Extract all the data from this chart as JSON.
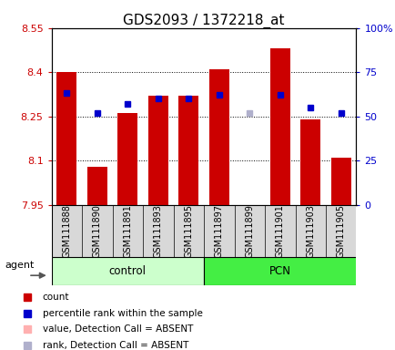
{
  "title": "GDS2093 / 1372218_at",
  "samples": [
    "GSM111888",
    "GSM111890",
    "GSM111891",
    "GSM111893",
    "GSM111895",
    "GSM111897",
    "GSM111899",
    "GSM111901",
    "GSM111903",
    "GSM111905"
  ],
  "ylim_left": [
    7.95,
    8.55
  ],
  "ylim_right": [
    0,
    100
  ],
  "yticks_left": [
    7.95,
    8.1,
    8.25,
    8.4,
    8.55
  ],
  "yticks_right": [
    0,
    25,
    50,
    75,
    100
  ],
  "ytick_labels_right": [
    "0",
    "25",
    "50",
    "75",
    "100%"
  ],
  "bar_values": [
    8.4,
    8.08,
    8.26,
    8.32,
    8.32,
    8.41,
    7.95,
    8.48,
    8.24,
    8.11
  ],
  "bar_absent": [
    false,
    false,
    false,
    false,
    false,
    false,
    true,
    false,
    false,
    false
  ],
  "bar_color_present": "#cc0000",
  "bar_color_absent": "#ffb0b0",
  "rank_values": [
    63,
    52,
    57,
    60,
    60,
    62,
    52,
    62,
    55,
    52
  ],
  "rank_absent": [
    false,
    false,
    false,
    false,
    false,
    false,
    true,
    false,
    false,
    false
  ],
  "rank_color_present": "#0000cc",
  "rank_color_absent": "#b0b0cc",
  "bar_bottom": 7.95,
  "bar_width": 0.65,
  "group_control_label": "control",
  "group_pcn_label": "PCN",
  "group_control_color": "#ccffcc",
  "group_pcn_color": "#44ee44",
  "agent_label": "agent",
  "legend_items": [
    {
      "label": "count",
      "color": "#cc0000"
    },
    {
      "label": "percentile rank within the sample",
      "color": "#0000cc"
    },
    {
      "label": "value, Detection Call = ABSENT",
      "color": "#ffb0b0"
    },
    {
      "label": "rank, Detection Call = ABSENT",
      "color": "#b0b0cc"
    }
  ],
  "background_color": "#ffffff",
  "tick_color_left": "#cc0000",
  "tick_color_right": "#0000cc",
  "grid_lines": [
    8.1,
    8.25,
    8.4
  ],
  "title_fontsize": 11,
  "tick_fontsize": 8,
  "label_fontsize": 7
}
